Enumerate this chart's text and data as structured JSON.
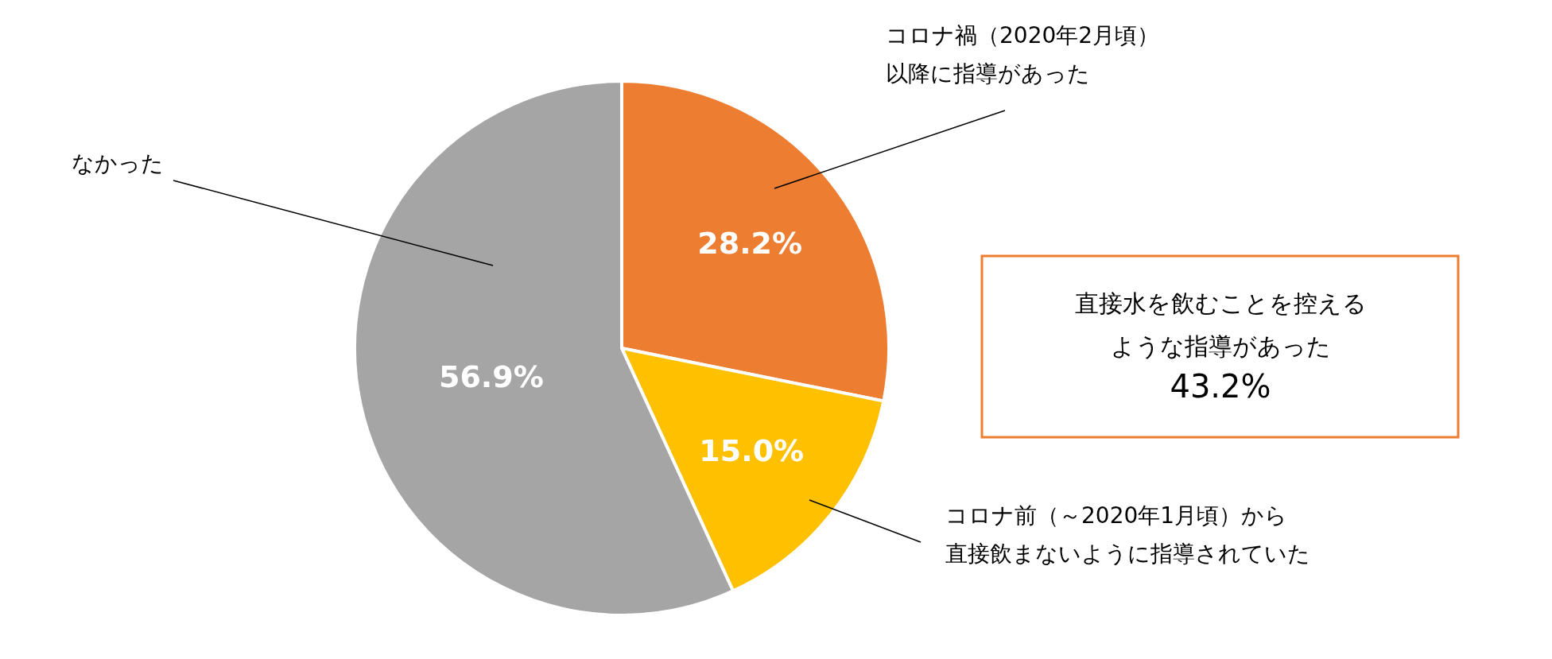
{
  "chart_data": {
    "type": "pie",
    "categories": [
      "コロナ禍（2020年2月頃）以降に指導があった",
      "コロナ前（～2020年1月頃）から直接飲まないように指導されていた",
      "なかった"
    ],
    "values": [
      28.2,
      15.0,
      56.9
    ],
    "colors": [
      "#ed7d31",
      "#ffc000",
      "#a5a5a5"
    ],
    "value_labels": [
      "28.2%",
      "15.0%",
      "56.9%"
    ],
    "annotations": [
      "直接水を飲むことを控えるような指導があった",
      "43.2%"
    ]
  }
}
